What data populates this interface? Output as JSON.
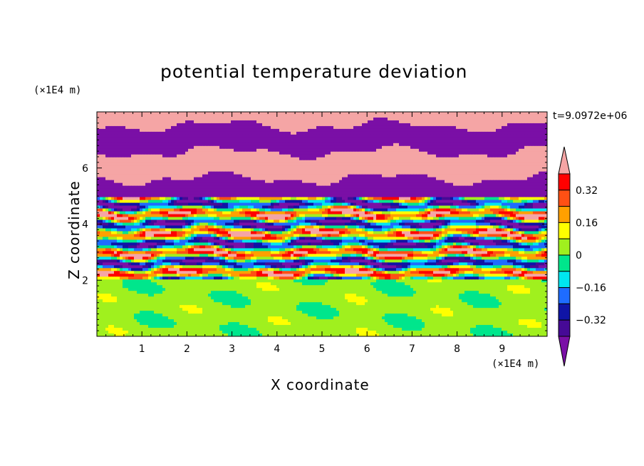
{
  "chart_data": {
    "type": "heatmap",
    "title": "potential temperature deviation",
    "xlabel": "X coordinate",
    "ylabel": "Z coordinate",
    "x_unit": "(×1E4 m)",
    "y_unit": "(×1E4 m)",
    "timestamp": "t=9.0972e+06",
    "xlim": [
      0,
      10
    ],
    "ylim": [
      0,
      8
    ],
    "x_ticks": [
      "1",
      "2",
      "3",
      "4",
      "5",
      "6",
      "7",
      "8",
      "9"
    ],
    "y_ticks": [
      "2",
      "4",
      "6"
    ],
    "colorbar": {
      "levels": [
        -0.4,
        -0.32,
        -0.24,
        -0.16,
        -0.08,
        0,
        0.08,
        0.16,
        0.24,
        0.32,
        0.4
      ],
      "tick_labels": [
        "0.32",
        "0.16",
        "0",
        "−0.16",
        "−0.32"
      ],
      "colors": [
        "#7a0fa6",
        "#460a96",
        "#0f14a6",
        "#1e6cff",
        "#00e6f0",
        "#00e68c",
        "#a0f01e",
        "#ffff00",
        "#ffa000",
        "#ff5014",
        "#ff0000",
        "#f5a5a5"
      ],
      "extend": "both"
    },
    "regions": [
      {
        "z_range": [
          0,
          2
        ],
        "description_value": 0.02
      },
      {
        "z_range": [
          2,
          5
        ],
        "description_value": "mixed -0.4..0.4"
      },
      {
        "z_range": [
          5,
          8
        ],
        "description_value": "alternating bands"
      }
    ]
  }
}
